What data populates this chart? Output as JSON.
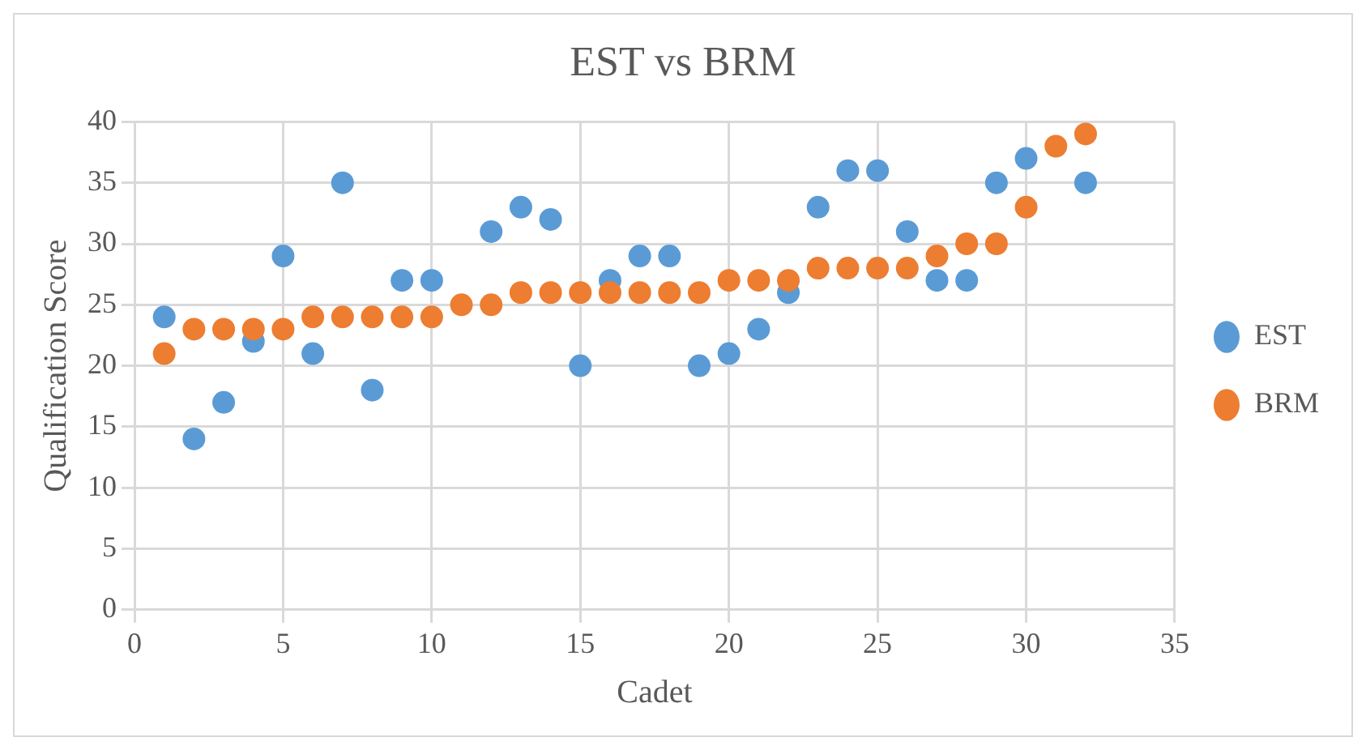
{
  "chart_data": {
    "type": "scatter",
    "title": "EST vs BRM",
    "xlabel": "Cadet",
    "ylabel": "Qualification Score",
    "x": [
      1,
      2,
      3,
      4,
      5,
      6,
      7,
      8,
      9,
      10,
      11,
      12,
      13,
      14,
      15,
      16,
      17,
      18,
      19,
      20,
      21,
      22,
      23,
      24,
      25,
      26,
      27,
      28,
      29,
      30,
      31,
      32
    ],
    "series": [
      {
        "name": "EST",
        "color": "#5b9bd5",
        "values": [
          24,
          14,
          17,
          22,
          29,
          21,
          35,
          18,
          27,
          27,
          null,
          31,
          33,
          32,
          20,
          27,
          29,
          29,
          20,
          21,
          23,
          26,
          33,
          36,
          36,
          31,
          27,
          27,
          35,
          37,
          null,
          35
        ]
      },
      {
        "name": "BRM",
        "color": "#ed7d31",
        "values": [
          21,
          23,
          23,
          23,
          23,
          24,
          24,
          24,
          24,
          24,
          25,
          25,
          26,
          26,
          26,
          26,
          26,
          26,
          26,
          27,
          27,
          27,
          28,
          28,
          28,
          28,
          29,
          30,
          30,
          33,
          38,
          39
        ]
      }
    ],
    "xlim": [
      0,
      35
    ],
    "xticks": [
      0,
      5,
      10,
      15,
      20,
      25,
      30,
      35
    ],
    "ylim": [
      0,
      40
    ],
    "yticks": [
      0,
      5,
      10,
      15,
      20,
      25,
      30,
      35,
      40
    ],
    "grid": true,
    "legend": "right",
    "marker": "circle"
  }
}
